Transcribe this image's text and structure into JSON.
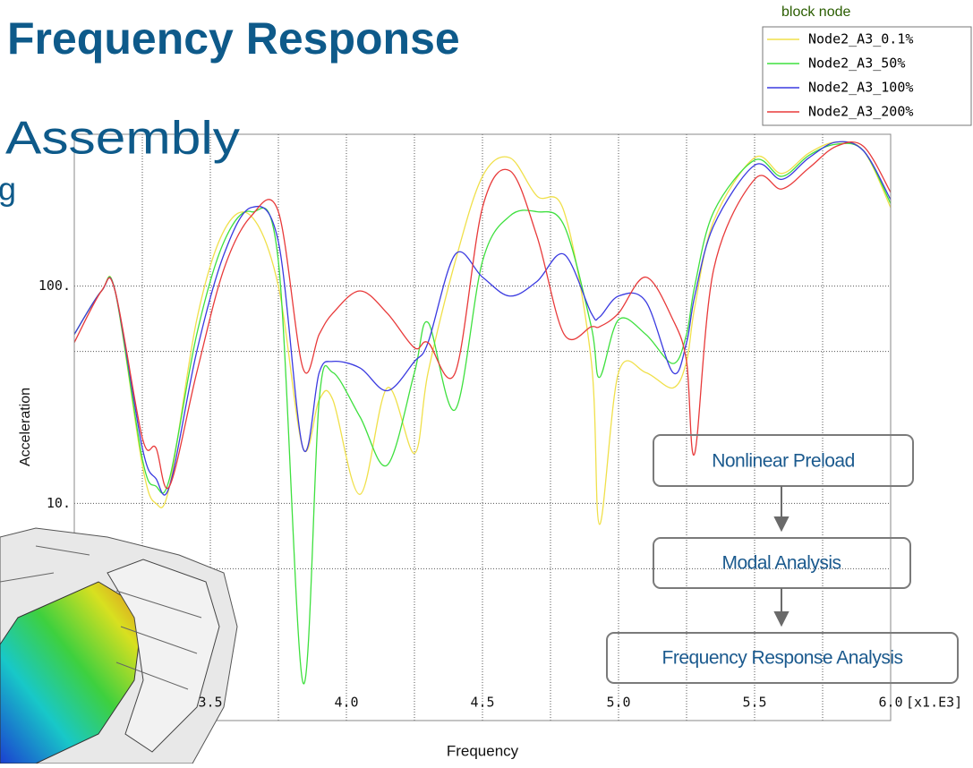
{
  "slide": {
    "title": "Frequency Response",
    "subtitle": "Assembly",
    "fragment": "g"
  },
  "chart_data": {
    "type": "line",
    "legend_title": "block node",
    "x_label": "Frequency",
    "y_label": "Acceleration",
    "x_unit_label": "[x1.E3]",
    "x": [
      3.0,
      3.1,
      3.15,
      3.25,
      3.3,
      3.35,
      3.45,
      3.55,
      3.65,
      3.75,
      3.84,
      3.9,
      3.95,
      4.05,
      4.15,
      4.25,
      4.3,
      4.4,
      4.5,
      4.6,
      4.7,
      4.8,
      4.9,
      4.93,
      5.0,
      5.1,
      5.2,
      5.25,
      5.28,
      5.35,
      5.5,
      5.6,
      5.7,
      5.8,
      5.9,
      6.0
    ],
    "series": [
      {
        "name": "Node2_A3_0.1%",
        "color": "#f0e04a",
        "values": [
          60,
          95,
          95,
          15,
          10,
          12,
          70,
          180,
          210,
          100,
          18,
          30,
          30,
          11,
          34,
          17,
          40,
          130,
          320,
          390,
          260,
          220,
          45,
          8,
          40,
          40,
          34,
          45,
          80,
          200,
          390,
          330,
          410,
          460,
          420,
          230
        ]
      },
      {
        "name": "Node2_A3_50%",
        "color": "#3ee03e",
        "values": [
          60,
          95,
          95,
          16,
          12,
          13,
          60,
          160,
          220,
          130,
          1.5,
          30,
          40,
          25,
          15,
          40,
          68,
          27,
          130,
          210,
          220,
          190,
          65,
          38,
          70,
          60,
          44,
          60,
          100,
          220,
          380,
          320,
          400,
          450,
          420,
          240
        ]
      },
      {
        "name": "Node2_A3_100%",
        "color": "#3a3ae0",
        "values": [
          60,
          95,
          95,
          18,
          13,
          12,
          50,
          140,
          230,
          160,
          18,
          40,
          45,
          42,
          33,
          45,
          55,
          140,
          110,
          90,
          105,
          140,
          75,
          72,
          90,
          85,
          40,
          55,
          90,
          190,
          360,
          310,
          390,
          460,
          420,
          250
        ]
      },
      {
        "name": "Node2_A3_200%",
        "color": "#e83a3a",
        "values": [
          55,
          95,
          95,
          20,
          18,
          12,
          40,
          120,
          210,
          220,
          42,
          60,
          75,
          95,
          75,
          52,
          55,
          40,
          230,
          340,
          170,
          60,
          65,
          65,
          75,
          110,
          70,
          45,
          17,
          120,
          310,
          280,
          350,
          440,
          440,
          270
        ]
      }
    ],
    "xlim": [
      3.0,
      6.0
    ],
    "xticks": [
      {
        "value": 3.5,
        "label": "3.5"
      },
      {
        "value": 4.0,
        "label": "4.0"
      },
      {
        "value": 4.5,
        "label": "4.5"
      },
      {
        "value": 5.0,
        "label": "5.0"
      },
      {
        "value": 5.5,
        "label": "5.5"
      },
      {
        "value": 6.0,
        "label": "6.0"
      }
    ],
    "minor_xticks": [
      3.25,
      3.75,
      4.25,
      4.75,
      5.25,
      5.75
    ],
    "ylim": [
      1,
      500
    ],
    "log_y": true,
    "yticks": [
      {
        "value": 10,
        "label": "10."
      },
      {
        "value": 100,
        "label": "100."
      }
    ],
    "minor_yticks": [
      5,
      50
    ],
    "grid": true
  },
  "flowchart": {
    "steps": [
      "Nonlinear Preload",
      "Modal Analysis",
      "Frequency Response Analysis"
    ]
  }
}
